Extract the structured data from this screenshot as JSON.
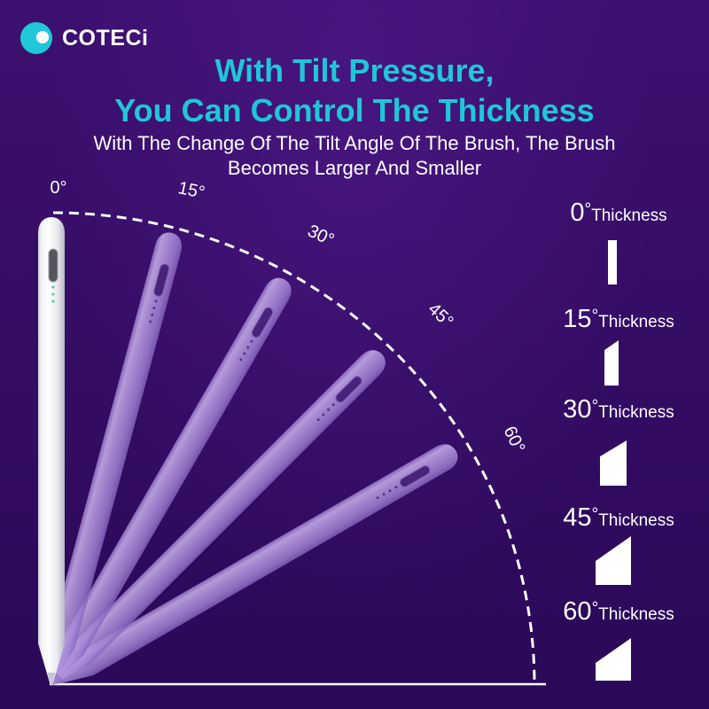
{
  "brand": {
    "name": "COTECi",
    "logo_icon": "coteci-logo-icon"
  },
  "headline": {
    "line1": "With Tilt Pressure,",
    "line2": "You Can Control The Thickness"
  },
  "subheadline": {
    "line1": "With The Change Of The Tilt Angle Of The Brush, The Brush",
    "line2": "Becomes Larger And Smaller"
  },
  "tilt_angles": [
    {
      "angle": 0,
      "label": "0°"
    },
    {
      "angle": 15,
      "label": "15°"
    },
    {
      "angle": 30,
      "label": "30°"
    },
    {
      "angle": 45,
      "label": "45°"
    },
    {
      "angle": 60,
      "label": "60°"
    }
  ],
  "thickness_samples": [
    {
      "angle": "0",
      "unit": "°",
      "label": "Thickness"
    },
    {
      "angle": "15",
      "unit": "°",
      "label": "Thickness"
    },
    {
      "angle": "30",
      "unit": "°",
      "label": "Thickness"
    },
    {
      "angle": "45",
      "unit": "°",
      "label": "Thickness"
    },
    {
      "angle": "60",
      "unit": "°",
      "label": "Thickness"
    }
  ],
  "colors": {
    "accent": "#1fc7d8",
    "background_top": "#3d1070",
    "background_bottom": "#2a0958",
    "text": "#ffffff"
  }
}
